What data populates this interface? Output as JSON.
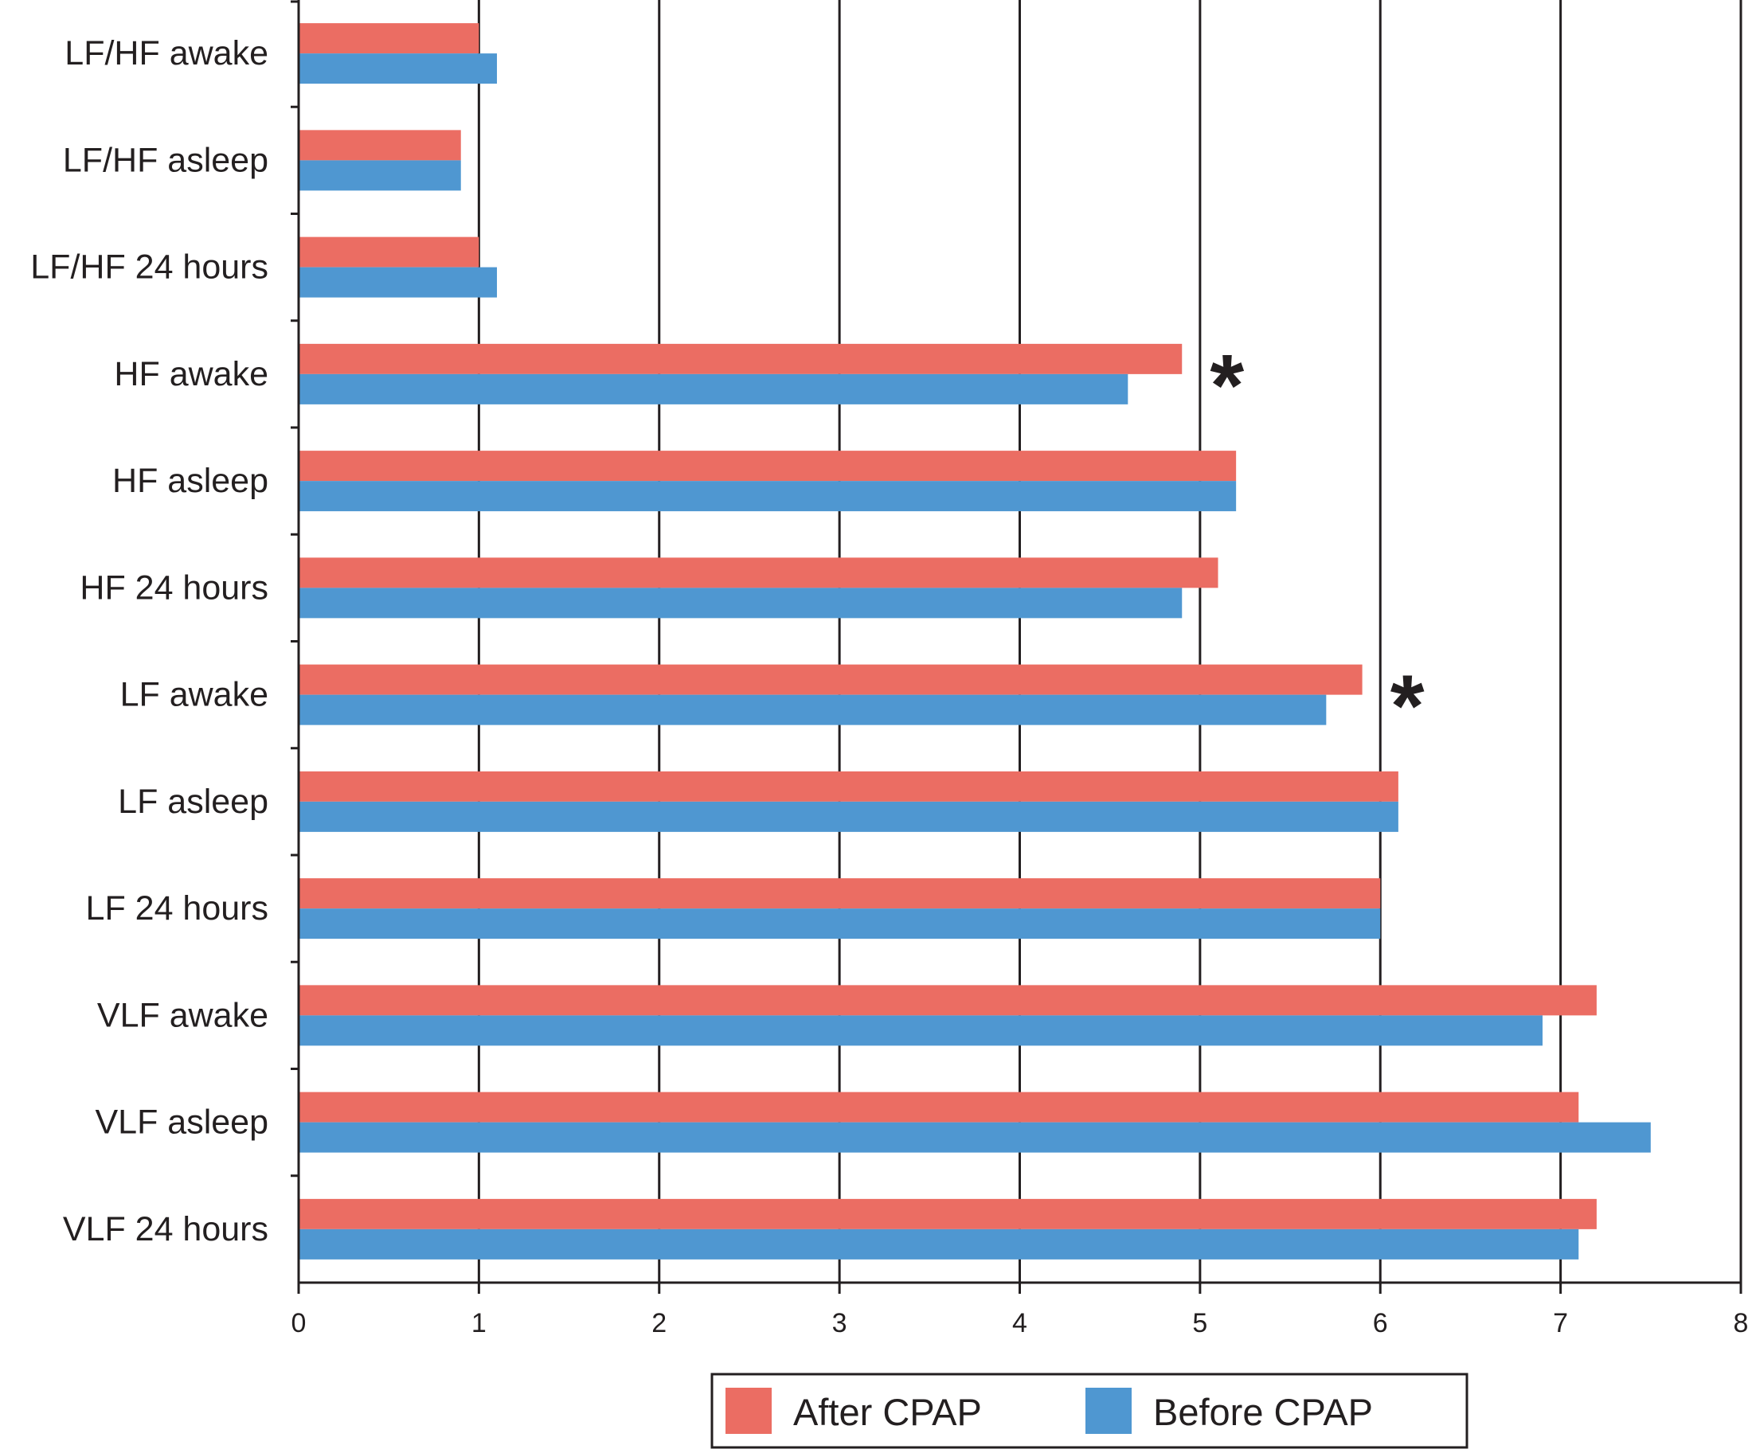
{
  "chart_data": {
    "type": "bar",
    "orientation": "horizontal",
    "title": "",
    "xlabel": "",
    "ylabel": "",
    "xlim": [
      0,
      8
    ],
    "xticks": [
      "0",
      "1",
      "2",
      "3",
      "4",
      "5",
      "6",
      "7",
      "8"
    ],
    "grid": "vertical lines at each integer",
    "categories": [
      "LF/HF awake",
      "LF/HF asleep",
      "LF/HF 24 hours",
      "HF awake",
      "HF asleep",
      "HF 24 hours",
      "LF awake",
      "LF asleep",
      "LF 24 hours",
      "VLF awake",
      "VLF asleep",
      "VLF 24 hours"
    ],
    "series": [
      {
        "name": "After CPAP",
        "color": "#eb6d63",
        "values": [
          1.0,
          0.9,
          1.0,
          4.9,
          5.2,
          5.1,
          5.9,
          6.1,
          6.0,
          7.2,
          7.1,
          7.2
        ]
      },
      {
        "name": "Before CPAP",
        "color": "#4f97d1",
        "values": [
          1.1,
          0.9,
          1.1,
          4.6,
          5.2,
          4.9,
          5.7,
          6.1,
          6.0,
          6.9,
          7.5,
          7.1
        ]
      }
    ],
    "annotations": [
      {
        "category": "HF awake",
        "text": "*",
        "x": 5.15
      },
      {
        "category": "LF awake",
        "text": "*",
        "x": 6.15
      }
    ],
    "legend": {
      "placement": "bottom-center",
      "entries": [
        "After CPAP",
        "Before CPAP"
      ]
    }
  }
}
